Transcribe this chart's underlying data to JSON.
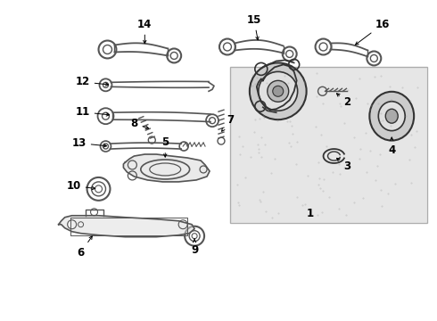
{
  "bg_color": "#ffffff",
  "border_color": "#000000",
  "box_bg": "#d8d8d8",
  "gray": "#555555",
  "lgray": "#888888",
  "dgray": "#333333",
  "lw_main": 1.2,
  "lw_thin": 0.7,
  "fs": 8.5
}
